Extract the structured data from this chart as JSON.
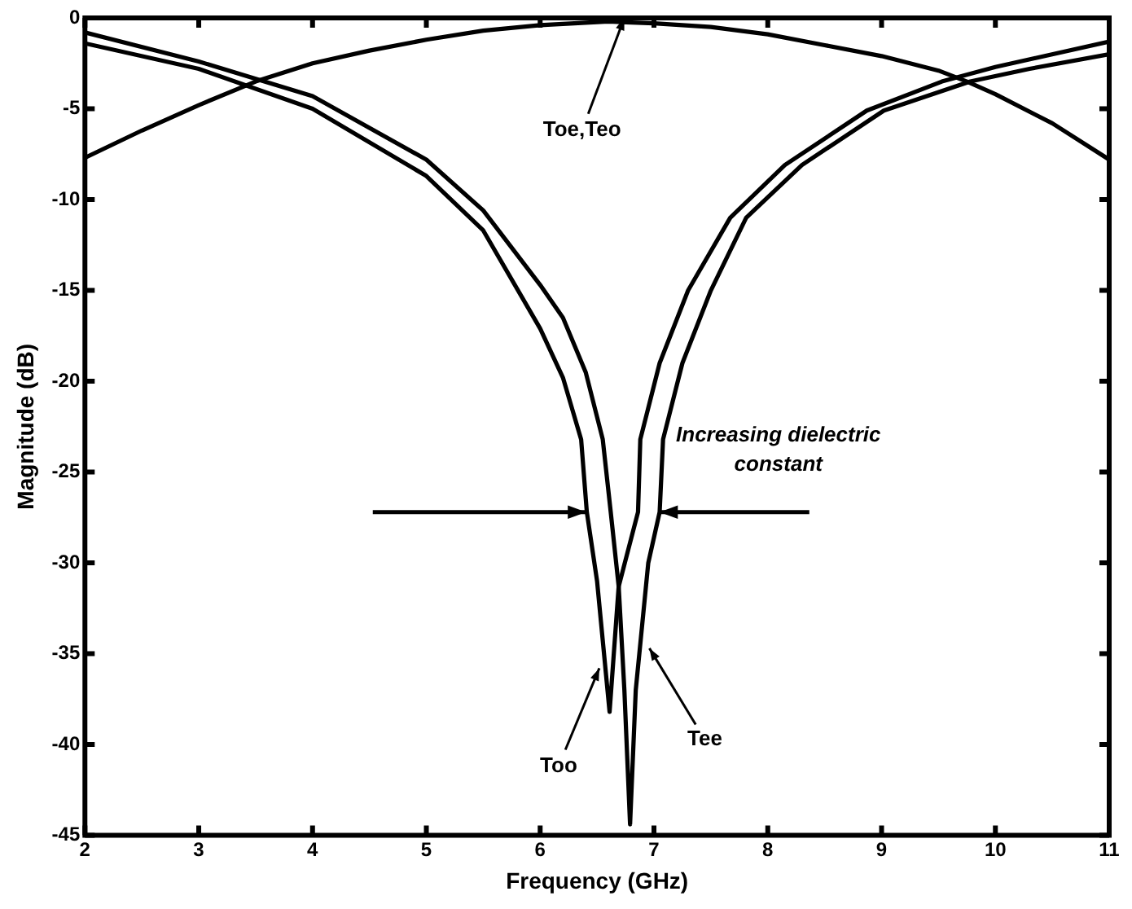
{
  "chart_data": {
    "type": "line",
    "xlabel": "Frequency (GHz)",
    "ylabel": "Magnitude (dB)",
    "xlim": [
      2,
      11
    ],
    "xticks": [
      2,
      3,
      4,
      5,
      6,
      7,
      8,
      9,
      10,
      11
    ],
    "ylim": [
      -45,
      0
    ],
    "yticks": [
      0,
      -5,
      -10,
      -15,
      -20,
      -25,
      -30,
      -35,
      -40,
      -45
    ],
    "grid": false,
    "legend": false,
    "marker": "none",
    "line_style": "solid",
    "series": [
      {
        "color": "#000000",
        "x": [
          2,
          2.5,
          3,
          3.5,
          4,
          4.5,
          5,
          5.5,
          6,
          6.6,
          7,
          7.5,
          8,
          8.5,
          9,
          9.5,
          9.75,
          10,
          10.5,
          11
        ],
        "values": [
          -7.7,
          -6.2,
          -4.8,
          -3.5,
          -2.5,
          -1.8,
          -1.2,
          -0.7,
          -0.4,
          -0.2,
          -0.3,
          -0.5,
          -0.9,
          -1.5,
          -2.1,
          -2.9,
          -3.5,
          -4.2,
          -5.8,
          -7.8
        ]
      },
      {
        "color": "#000000",
        "x": [
          2,
          3,
          4,
          5,
          5.5,
          6,
          6.2,
          6.36,
          6.41,
          6.5,
          6.61,
          6.69,
          6.86,
          6.88,
          7.05,
          7.3,
          7.67,
          8.15,
          8.87,
          9.53,
          10,
          11
        ],
        "values": [
          -1.4,
          -2.8,
          -5,
          -8.7,
          -11.7,
          -17.1,
          -19.8,
          -23.2,
          -27.2,
          -31,
          -38.2,
          -31.3,
          -27.2,
          -23.2,
          -19,
          -15,
          -11,
          -8.1,
          -5.1,
          -3.5,
          -2.7,
          -1.3
        ]
      },
      {
        "color": "#000000",
        "x": [
          2,
          3,
          4,
          5,
          5.5,
          6,
          6.2,
          6.4,
          6.55,
          6.62,
          6.69,
          6.74,
          6.79,
          6.84,
          6.95,
          7.05,
          7.08,
          7.25,
          7.5,
          7.81,
          8.3,
          9.02,
          9.78,
          10.3,
          11
        ],
        "values": [
          -0.8,
          -2.4,
          -4.3,
          -7.8,
          -10.6,
          -14.7,
          -16.5,
          -19.5,
          -23.2,
          -27.2,
          -31.3,
          -37,
          -44.4,
          -37,
          -30,
          -27.2,
          -23.2,
          -19,
          -15,
          -11,
          -8.1,
          -5.1,
          -3.5,
          -2.8,
          -2
        ]
      }
    ],
    "annotations": [
      {
        "text": "Toe,Teo",
        "x": 6.74,
        "y": 0
      },
      {
        "text": "Too",
        "x": 6.52,
        "y": -35.8
      },
      {
        "text": "Tee",
        "x": 6.96,
        "y": -34.7
      },
      "Increasing dielectric constant"
    ]
  }
}
